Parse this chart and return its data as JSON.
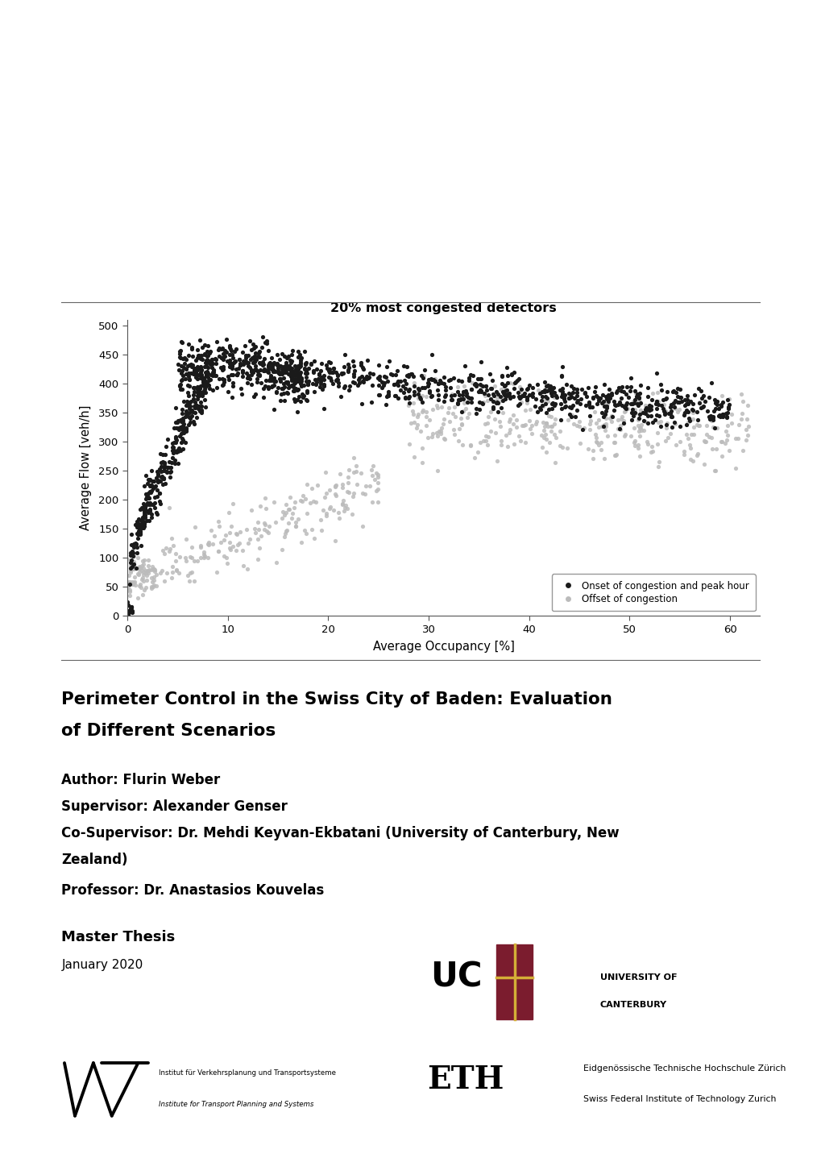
{
  "title": "20% most congested detectors",
  "xlabel": "Average Occupancy [%]",
  "ylabel": "Average Flow [veh/h]",
  "xlim": [
    0,
    63
  ],
  "ylim": [
    0,
    510
  ],
  "xticks": [
    0,
    10,
    20,
    30,
    40,
    50,
    60
  ],
  "yticks": [
    0,
    50,
    100,
    150,
    200,
    250,
    300,
    350,
    400,
    450,
    500
  ],
  "legend_label_black": "Onset of congestion and peak hour",
  "legend_label_gray": "Offset of congestion",
  "dot_color_black": "#1a1a1a",
  "dot_color_gray": "#bbbbbb",
  "dot_size": 14,
  "title_line1": "Perimeter Control in the Swiss City of Baden: Evaluation",
  "title_line2": "of Different Scenarios",
  "author_line": "Author: Flurin Weber",
  "supervisor_line": "Supervisor: Alexander Genser",
  "cosupervisor_line1": "Co-Supervisor: Dr. Mehdi Keyvan-Ekbatani (University of Canterbury, New",
  "cosupervisor_line2": "Zealand)",
  "professor_line": "Professor: Dr. Anastasios Kouvelas",
  "thesis_type": "Master Thesis",
  "date_line": "January 2020",
  "ivt_text1": "Institut für Verkehrsplanung und Transportsysteme",
  "ivt_text2": "Institute for Transport Planning and Systems",
  "eth_text1": "Eidgenössische Technische Hochschule Zürich",
  "eth_text2": "Swiss Federal Institute of Technology Zurich",
  "uc_text1": "UNIVERSITY OF",
  "uc_text2": "CANTERBURY",
  "background_color": "#ffffff",
  "random_seed": 42
}
